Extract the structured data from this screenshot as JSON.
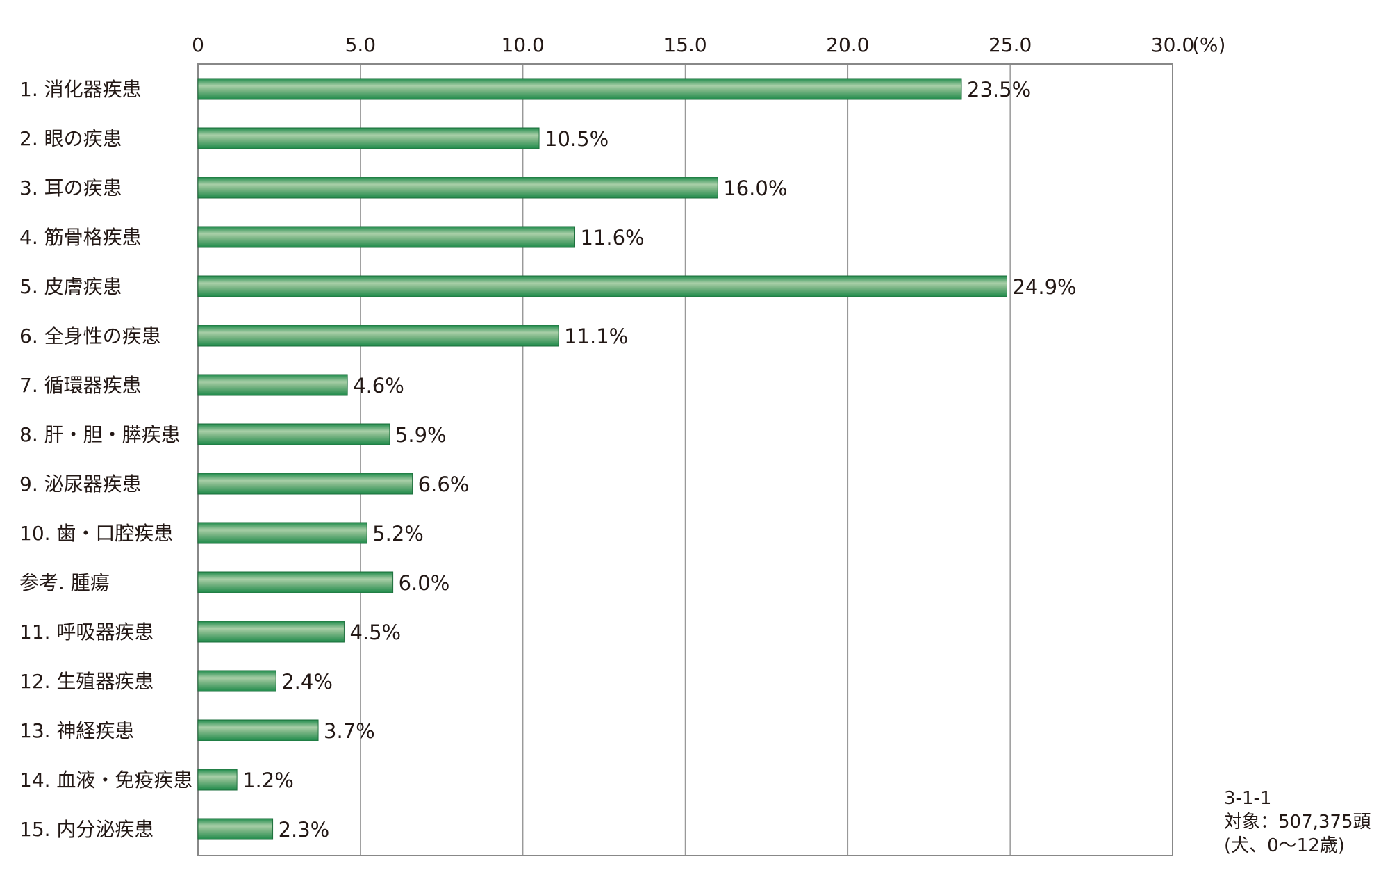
{
  "chart_data": {
    "type": "bar",
    "orientation": "horizontal",
    "title": "",
    "xlabel": "",
    "ylabel": "",
    "unit_label": "(%)",
    "xlim": [
      0,
      30
    ],
    "ticks": [
      "0",
      "5.0",
      "10.0",
      "15.0",
      "20.0",
      "25.0",
      "30.0"
    ],
    "tick_values": [
      0,
      5,
      10,
      15,
      20,
      25,
      30
    ],
    "grid": "vertical",
    "categories": [
      "1. 消化器疾患",
      "2. 眼の疾患",
      "3. 耳の疾患",
      "4. 筋骨格疾患",
      "5. 皮膚疾患",
      "6. 全身性の疾患",
      "7. 循環器疾患",
      "8. 肝・胆・膵疾患",
      "9. 泌尿器疾患",
      "10. 歯・口腔疾患",
      "参考. 腫瘍",
      "11. 呼吸器疾患",
      "12. 生殖器疾患",
      "13. 神経疾患",
      "14. 血液・免疫疾患",
      "15. 内分泌疾患"
    ],
    "values": [
      23.5,
      10.5,
      16.0,
      11.6,
      24.9,
      11.1,
      4.6,
      5.9,
      6.6,
      5.2,
      6.0,
      4.5,
      2.4,
      3.7,
      1.2,
      2.3
    ],
    "value_labels": [
      "23.5%",
      "10.5%",
      "16.0%",
      "11.6%",
      "24.9%",
      "11.1%",
      "4.6%",
      "5.9%",
      "6.6%",
      "5.2%",
      "6.0%",
      "4.5%",
      "2.4%",
      "3.7%",
      "1.2%",
      "2.3%"
    ],
    "colors": {
      "bar_dark": "#1e8a4a",
      "bar_light": "#a9cfa8",
      "axis": "#888888",
      "grid": "#999999"
    }
  },
  "note": {
    "code": "3-1-1",
    "subject": "対象：507,375頭",
    "scope": "(犬、0～12歳)"
  }
}
